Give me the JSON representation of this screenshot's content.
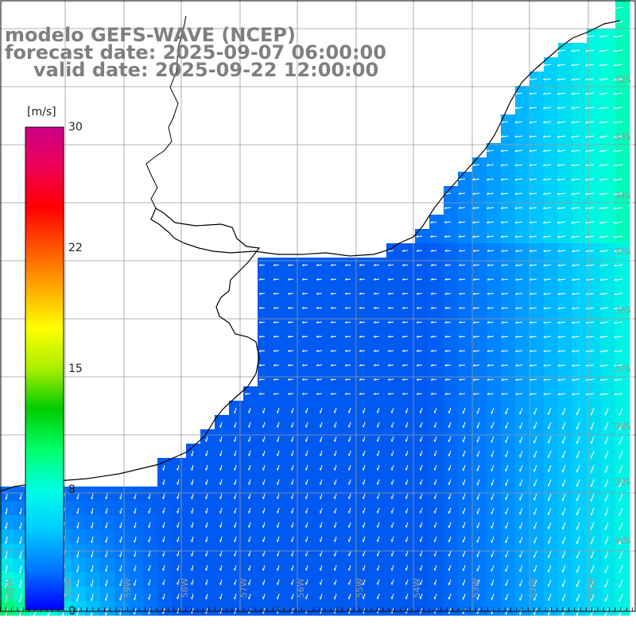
{
  "titles": {
    "line1": "modelo GEFS-WAVE (NCEP)",
    "line2": "forecast date: 2025-09-07 06:00:00",
    "line3": "valid date: 2025-09-22 12:00:00"
  },
  "colorbar": {
    "unit": "[m/s]",
    "ticks": [
      "30",
      "22",
      "15",
      "8",
      "0"
    ],
    "colors": [
      "#0000ff",
      "#0077ff",
      "#00ccff",
      "#00ffe5",
      "#00ff66",
      "#00cc00",
      "#aaee00",
      "#ffff00",
      "#ffaa00",
      "#ff5500",
      "#ff0000",
      "#ee0055",
      "#cc0088"
    ]
  },
  "grid_labels": {
    "lat": [
      "32S",
      "33S",
      "34S",
      "35S",
      "36S",
      "37S",
      "38S",
      "39S",
      "40S"
    ],
    "lon": [
      "61W",
      "60W",
      "59W",
      "58W",
      "57W",
      "56W",
      "55W",
      "54W",
      "53W",
      "52W",
      "51W"
    ]
  },
  "colors": {
    "land": "#ffffff",
    "grid": "#9a9a9a",
    "coast": "#000000",
    "arrows": "#ffffff",
    "title": "#7f7f7f"
  }
}
